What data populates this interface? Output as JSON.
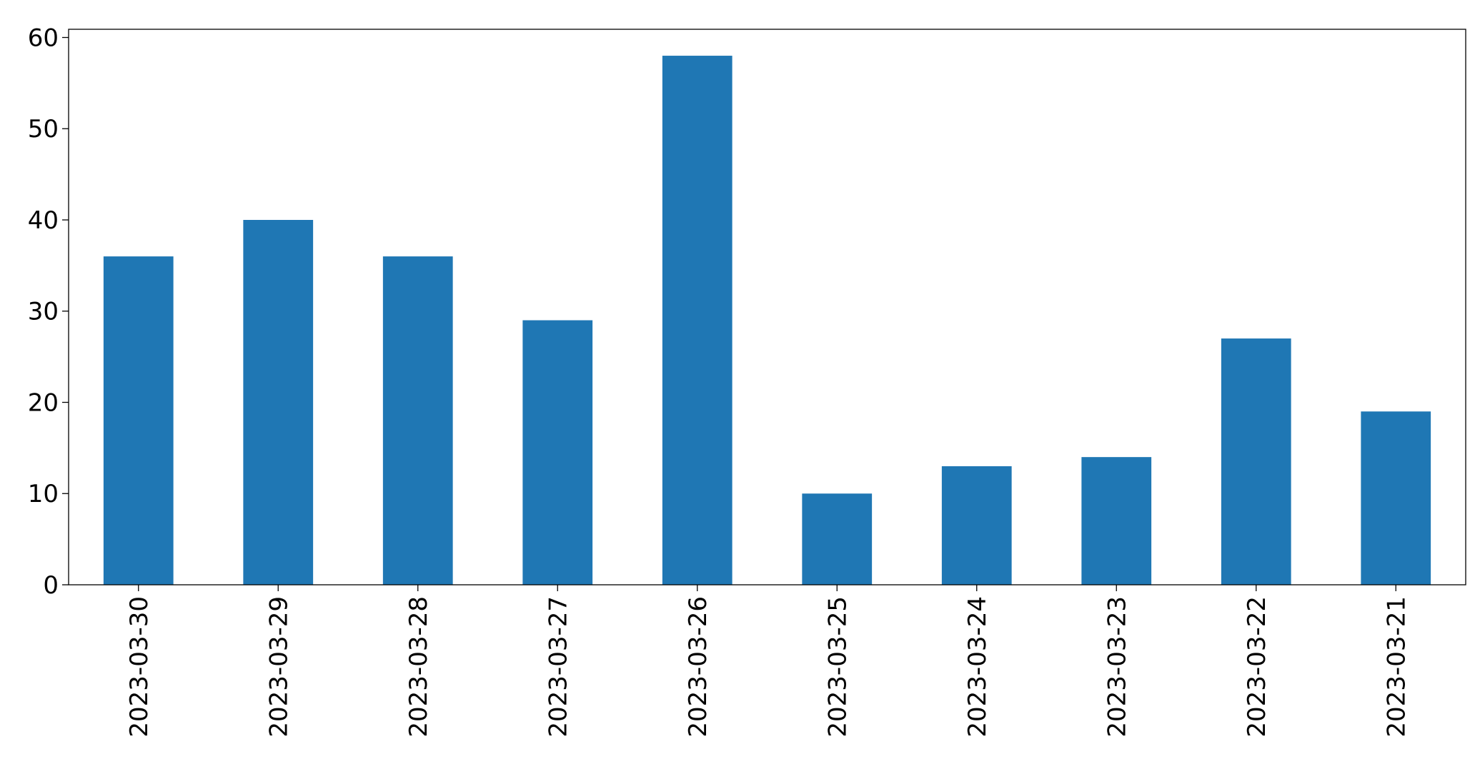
{
  "chart_data": {
    "type": "bar",
    "categories": [
      "2023-03-30",
      "2023-03-29",
      "2023-03-28",
      "2023-03-27",
      "2023-03-26",
      "2023-03-25",
      "2023-03-24",
      "2023-03-23",
      "2023-03-22",
      "2023-03-21"
    ],
    "values": [
      36,
      40,
      36,
      29,
      58,
      10,
      13,
      14,
      27,
      19
    ],
    "color": "#1f77b4",
    "ylim": [
      0,
      60.9
    ],
    "yticks": [
      0,
      10,
      20,
      30,
      40,
      50,
      60
    ],
    "grid": false
  }
}
